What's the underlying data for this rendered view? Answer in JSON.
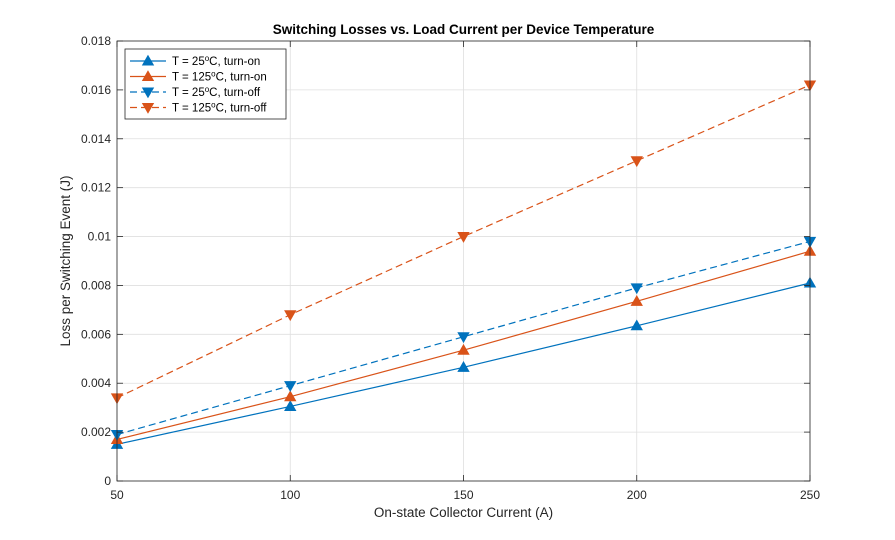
{
  "chart_data": {
    "type": "line",
    "title": "Switching Losses vs. Load Current per Device Temperature",
    "xlabel": "On-state Collector Current (A)",
    "ylabel": "Loss per Switching Event (J)",
    "xlim": [
      50,
      250
    ],
    "ylim": [
      0,
      0.018
    ],
    "xticks": [
      "50",
      "100",
      "150",
      "200",
      "250"
    ],
    "yticks": [
      "0",
      "0.002",
      "0.004",
      "0.006",
      "0.008",
      "0.01",
      "0.012",
      "0.014",
      "0.016",
      "0.018"
    ],
    "grid": true,
    "legend_position": "top-left",
    "x": [
      50,
      100,
      150,
      200,
      250
    ],
    "series": [
      {
        "name": "T = 25°C, turn-on",
        "legend": {
          "prefix": "T = 25",
          "suffix": "C, turn-on"
        },
        "color": "#0072BD",
        "line": "solid",
        "marker": "triangle-up",
        "values": [
          0.0015,
          0.00305,
          0.00465,
          0.00635,
          0.0081
        ]
      },
      {
        "name": "T = 125°C, turn-on",
        "legend": {
          "prefix": "T = 125",
          "suffix": "C, turn-on"
        },
        "color": "#D95319",
        "line": "solid",
        "marker": "triangle-up",
        "values": [
          0.0017,
          0.00345,
          0.00535,
          0.00735,
          0.0094
        ]
      },
      {
        "name": "T = 25°C, turn-off",
        "legend": {
          "prefix": "T = 25",
          "suffix": "C, turn-off"
        },
        "color": "#0072BD",
        "line": "dashed",
        "marker": "triangle-down",
        "values": [
          0.0019,
          0.0039,
          0.0059,
          0.0079,
          0.0098
        ]
      },
      {
        "name": "T = 125°C, turn-off",
        "legend": {
          "prefix": "T = 125",
          "suffix": "C, turn-off"
        },
        "color": "#D95319",
        "line": "dashed",
        "marker": "triangle-down",
        "values": [
          0.0034,
          0.0068,
          0.01,
          0.0131,
          0.0162
        ]
      }
    ]
  }
}
